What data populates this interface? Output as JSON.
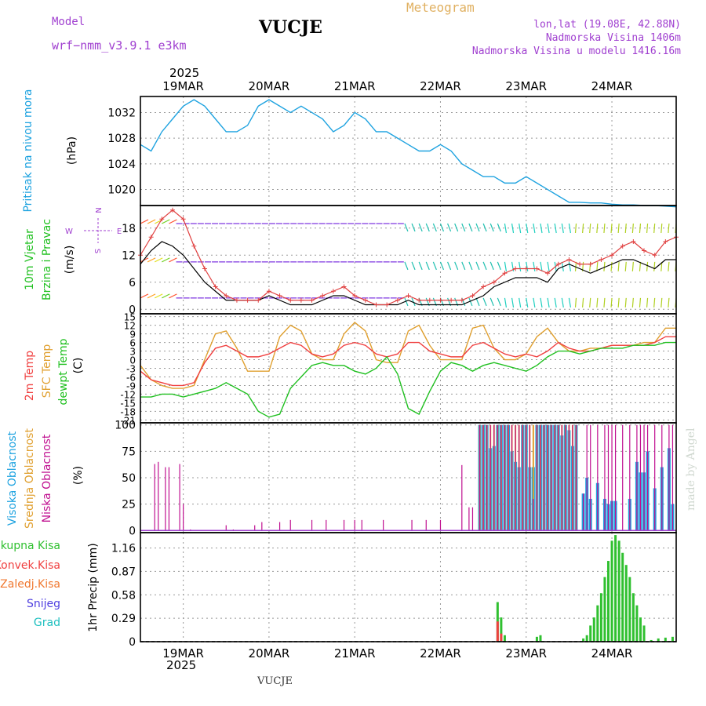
{
  "header": {
    "model_label": "Model",
    "model_name": "wrf−nmm_v3.9.1  e3km",
    "station": "VUCJE",
    "meteogram": "Meteogram",
    "lonlat": "lon,lat (19.08E, 42.88N)",
    "elevation": "Nadmorska Visina 1406m",
    "model_elevation": "Nadmorska Visina u modelu 1416.16m",
    "year_top": "2025",
    "year_bottom": "2025",
    "footer_station": "VUCJE",
    "watermark": "made by Angel"
  },
  "colors": {
    "pressure": "#1fa3e0",
    "temp2m": "#f04040",
    "sfc": "#e0a030",
    "dewpt": "#20c020",
    "cloud_high": "#1fa3e0",
    "cloud_mid": "#e0a030",
    "cloud_low": "#c01090",
    "precip_total": "#30c030",
    "precip_conv": "#f04040",
    "purple": "#a040d0"
  },
  "chart_data": {
    "type": "meteogram",
    "dates": [
      "19MAR",
      "20MAR",
      "21MAR",
      "22MAR",
      "23MAR",
      "24MAR"
    ],
    "x_hours_range": [
      -12,
      138
    ],
    "panels": [
      {
        "id": "pressure",
        "label_left": "Pritisak na nivou mora",
        "unit": "(hPa)",
        "ylim": [
          1017.5,
          1034.5
        ],
        "yticks": [
          1020,
          1024,
          1028,
          1032
        ],
        "x": [
          -12,
          -9,
          -6,
          -3,
          0,
          3,
          6,
          9,
          12,
          15,
          18,
          21,
          24,
          27,
          30,
          33,
          36,
          39,
          42,
          45,
          48,
          51,
          54,
          57,
          60,
          63,
          66,
          69,
          72,
          75,
          78,
          81,
          84,
          87,
          90,
          93,
          96,
          99,
          102,
          105,
          108,
          111,
          114,
          117,
          120,
          123,
          126,
          129,
          132,
          135,
          138
        ],
        "series": [
          {
            "name": "mslp",
            "values": [
              1027,
              1026,
              1029,
              1031,
              1033,
              1034,
              1033,
              1031,
              1029,
              1029,
              1030,
              1033,
              1034,
              1033,
              1032,
              1033,
              1032,
              1031,
              1029,
              1030,
              1032,
              1031,
              1029,
              1029,
              1028,
              1027,
              1026,
              1026,
              1027,
              1026,
              1024,
              1023,
              1022,
              1022,
              1021,
              1021,
              1022,
              1021,
              1020,
              1019,
              1018,
              1018,
              1017.9,
              1017.9,
              1017.7,
              1017.6,
              1017.6,
              1017.5,
              1017.5,
              1017.4,
              1017.3
            ]
          }
        ]
      },
      {
        "id": "wind",
        "label_left": "10m Vjetar",
        "label_left2": "Brzina i Pravac",
        "unit": "(m/s)",
        "ylim": [
          -1,
          23
        ],
        "yticks": [
          0,
          6,
          12,
          18
        ],
        "compass": {
          "north": "N",
          "south": "S",
          "east": "E",
          "west": "W"
        },
        "x": [
          -12,
          -9,
          -6,
          -3,
          0,
          3,
          6,
          9,
          12,
          15,
          18,
          21,
          24,
          27,
          30,
          33,
          36,
          39,
          42,
          45,
          48,
          51,
          54,
          57,
          60,
          63,
          66,
          69,
          72,
          75,
          78,
          81,
          84,
          87,
          90,
          93,
          96,
          99,
          102,
          105,
          108,
          111,
          114,
          117,
          120,
          123,
          126,
          129,
          132,
          135,
          138
        ],
        "series": [
          {
            "name": "speed",
            "values": [
              12,
              16,
              20,
              22,
              20,
              14,
              9,
              5,
              3,
              2,
              2,
              2,
              4,
              3,
              2,
              2,
              2,
              3,
              4,
              5,
              3,
              2,
              1,
              1,
              2,
              3,
              2,
              2,
              2,
              2,
              2,
              3,
              5,
              6,
              8,
              9,
              9,
              9,
              8,
              10,
              11,
              10,
              10,
              11,
              12,
              14,
              15,
              13,
              12,
              15,
              16
            ]
          },
          {
            "name": "gust",
            "values": [
              10,
              13,
              15,
              14,
              12,
              9,
              6,
              4,
              2,
              2,
              2,
              2,
              3,
              2,
              1,
              1,
              1,
              2,
              3,
              3,
              2,
              1,
              1,
              1,
              1,
              2,
              1,
              1,
              1,
              1,
              1,
              2,
              3,
              5,
              6,
              7,
              7,
              7,
              6,
              9,
              10,
              9,
              8,
              9,
              10,
              11,
              11,
              10,
              9,
              11,
              11
            ]
          }
        ]
      },
      {
        "id": "temperature",
        "label_left": "2m Temp",
        "label_left2": "SFC Temp",
        "label_left3": "dewpt Temp",
        "unit": "(C)",
        "ylim": [
          -22,
          16
        ],
        "yticks": [
          -21,
          -18,
          -15,
          -12,
          -9,
          -6,
          -3,
          0,
          3,
          6,
          9,
          12,
          15
        ],
        "x": [
          -12,
          -9,
          -6,
          -3,
          0,
          3,
          6,
          9,
          12,
          15,
          18,
          21,
          24,
          27,
          30,
          33,
          36,
          39,
          42,
          45,
          48,
          51,
          54,
          57,
          60,
          63,
          66,
          69,
          72,
          75,
          78,
          81,
          84,
          87,
          90,
          93,
          96,
          99,
          102,
          105,
          108,
          111,
          114,
          117,
          120,
          123,
          126,
          129,
          132,
          135,
          138
        ],
        "series": [
          {
            "name": "t2m",
            "values": [
              -4,
              -7,
              -8,
              -9,
              -9,
              -8,
              -1,
              4,
              5,
              3,
              1,
              1,
              2,
              4,
              6,
              5,
              2,
              1,
              2,
              5,
              6,
              5,
              2,
              1,
              2,
              6,
              6,
              3,
              2,
              1,
              1,
              5,
              6,
              4,
              2,
              1,
              2,
              1,
              3,
              6,
              4,
              3,
              3,
              4,
              5,
              5,
              5,
              5,
              6,
              8,
              8
            ]
          },
          {
            "name": "sfc",
            "values": [
              -2,
              -7,
              -9,
              -10,
              -10,
              -9,
              0,
              9,
              10,
              4,
              -4,
              -4,
              -4,
              8,
              12,
              10,
              2,
              0,
              0,
              9,
              13,
              10,
              0,
              -1,
              -1,
              10,
              12,
              5,
              0,
              0,
              0,
              11,
              12,
              4,
              0,
              0,
              2,
              8,
              11,
              6,
              3,
              3,
              4,
              4,
              5,
              5,
              5,
              6,
              6,
              11,
              11
            ]
          },
          {
            "name": "dewpt",
            "values": [
              -13,
              -13,
              -12,
              -12,
              -13,
              -12,
              -11,
              -10,
              -8,
              -10,
              -12,
              -18,
              -20,
              -19,
              -10,
              -6,
              -2,
              -1,
              -2,
              -2,
              -4,
              -5,
              -3,
              1,
              -5,
              -17,
              -19,
              -11,
              -4,
              -1,
              -2,
              -4,
              -2,
              -1,
              -2,
              -3,
              -4,
              -2,
              1,
              3,
              3,
              2,
              3,
              4,
              4,
              4,
              5,
              5,
              5,
              6,
              6
            ]
          }
        ]
      },
      {
        "id": "clouds",
        "label_left": "Visoka Oblacnost",
        "label_left2": "Srednja Oblacnost",
        "label_left3": "Niska Oblacnost",
        "unit": "(%)",
        "ylim": [
          -2,
          102
        ],
        "yticks": [
          0,
          25,
          50,
          75,
          100
        ],
        "x": [
          -8,
          -7,
          -5,
          -4,
          -1,
          0,
          2,
          12,
          14,
          20,
          22,
          27,
          30,
          36,
          40,
          45,
          48,
          50,
          56,
          64,
          68,
          72,
          78,
          80,
          81,
          83,
          84,
          85,
          86,
          87,
          88,
          89,
          90,
          91,
          92,
          93,
          94,
          95,
          96,
          97,
          98,
          99,
          100,
          101,
          102,
          103,
          104,
          105,
          106,
          107,
          108,
          109,
          110,
          112,
          113,
          114,
          116,
          118,
          119,
          120,
          121,
          123,
          125,
          127,
          128,
          129,
          130,
          132,
          134,
          136,
          137
        ],
        "series": [
          {
            "name": "low",
            "values": [
              63,
              65,
              60,
              60,
              63,
              25,
              1,
              5,
              1,
              5,
              8,
              8,
              10,
              10,
              10,
              10,
              10,
              10,
              10,
              10,
              10,
              10,
              62,
              22,
              22,
              100,
              100,
              100,
              100,
              100,
              100,
              100,
              100,
              100,
              100,
              100,
              100,
              100,
              100,
              100,
              30,
              100,
              100,
              100,
              100,
              100,
              100,
              100,
              100,
              100,
              100,
              100,
              100,
              35,
              100,
              100,
              100,
              100,
              100,
              100,
              100,
              100,
              100,
              100,
              100,
              100,
              100,
              100,
              100,
              100,
              100
            ]
          },
          {
            "name": "mid",
            "values": [
              0,
              0,
              0,
              0,
              0,
              0,
              0,
              0,
              0,
              0,
              0,
              0,
              0,
              0,
              0,
              0,
              0,
              0,
              0,
              0,
              0,
              0,
              0,
              0,
              0,
              100,
              100,
              100,
              100,
              100,
              100,
              100,
              100,
              100,
              100,
              100,
              100,
              100,
              100,
              100,
              100,
              100,
              100,
              100,
              100,
              100,
              100,
              100,
              100,
              100,
              100,
              100,
              100,
              0,
              0,
              0,
              0,
              0,
              0,
              0,
              0,
              0,
              0,
              0,
              0,
              0,
              0,
              0,
              0,
              0,
              0
            ]
          },
          {
            "name": "high",
            "values": [
              0,
              0,
              0,
              0,
              0,
              0,
              0,
              0,
              0,
              0,
              0,
              0,
              0,
              0,
              0,
              0,
              0,
              0,
              0,
              0,
              0,
              0,
              0,
              0,
              0,
              100,
              100,
              100,
              78,
              80,
              100,
              100,
              100,
              100,
              75,
              65,
              60,
              100,
              100,
              60,
              60,
              100,
              100,
              100,
              100,
              100,
              100,
              100,
              90,
              100,
              95,
              80,
              100,
              35,
              50,
              30,
              45,
              30,
              25,
              28,
              28,
              0,
              30,
              65,
              55,
              55,
              75,
              40,
              60,
              78,
              25
            ]
          }
        ]
      },
      {
        "id": "precip",
        "label_left": "1hr Precip",
        "unit": "(mm)",
        "legend": [
          "Ukupna  Kisa",
          "Konvek.Kisa",
          "Zaledj.Kisa",
          "Snijeg",
          "Grad"
        ],
        "ylim": [
          0,
          1.35
        ],
        "yticks": [
          0,
          0.29,
          0.58,
          0.87,
          1.16
        ],
        "ytick_labels": [
          "0",
          "0.29",
          "0.58",
          "0.87",
          "1.16"
        ],
        "x": [
          88,
          89,
          90,
          99,
          100,
          112,
          113,
          114,
          115,
          116,
          117,
          118,
          119,
          120,
          121,
          122,
          123,
          124,
          125,
          126,
          127,
          128,
          129,
          131,
          133,
          135,
          137
        ],
        "series": [
          {
            "name": "total",
            "values": [
              0.49,
              0.3,
              0.08,
              0.06,
              0.08,
              0.04,
              0.08,
              0.2,
              0.3,
              0.45,
              0.6,
              0.8,
              1.0,
              1.25,
              1.32,
              1.25,
              1.1,
              0.95,
              0.8,
              0.6,
              0.45,
              0.3,
              0.2,
              0.02,
              0.04,
              0.05,
              0.06
            ]
          },
          {
            "name": "convective",
            "values": [
              0.25,
              0.1,
              0,
              0,
              0,
              0,
              0,
              0,
              0,
              0,
              0,
              0,
              0,
              0,
              0,
              0,
              0,
              0,
              0,
              0,
              0,
              0,
              0,
              0,
              0,
              0,
              0
            ]
          }
        ]
      }
    ]
  }
}
